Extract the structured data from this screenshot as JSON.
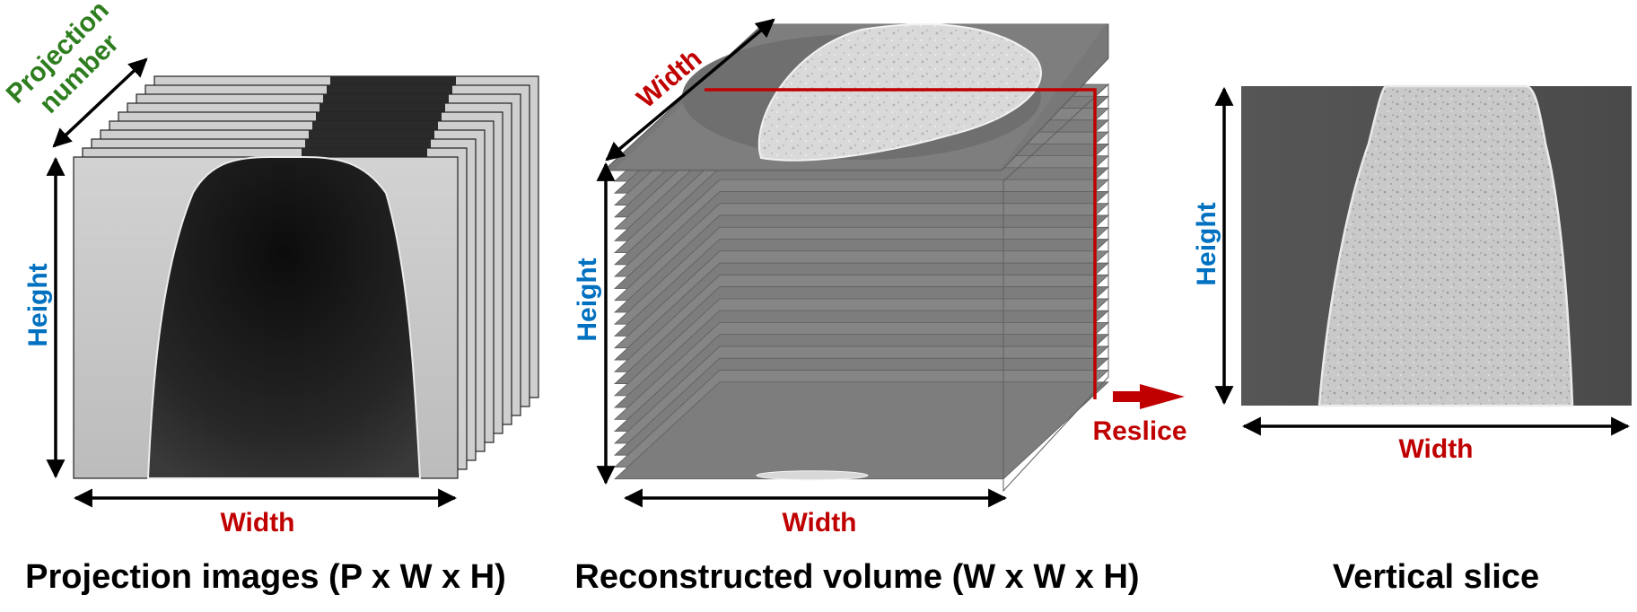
{
  "colors": {
    "width_label": "#c00000",
    "height_label": "#0070c0",
    "projection_label": "#2e7d1e",
    "reslice_line": "#c00000",
    "reslice_arrow": "#c00000",
    "caption": "#000000",
    "frame_light": "#c8c8c8",
    "slice_grey": "#7a7a7a",
    "sample_bright": "#dcdcdc"
  },
  "panel_projection": {
    "label_projection_line1": "Projection",
    "label_projection_line2": "number",
    "label_height": "Height",
    "label_width": "Width",
    "caption": "Projection images (P x W x H)"
  },
  "panel_volume": {
    "label_width_top": "Width",
    "label_height": "Height",
    "label_width_bottom": "Width",
    "label_reslice": "Reslice",
    "caption": "Reconstructed volume (W x W x H)"
  },
  "panel_slice": {
    "label_height": "Height",
    "label_width": "Width",
    "caption": "Vertical slice"
  }
}
